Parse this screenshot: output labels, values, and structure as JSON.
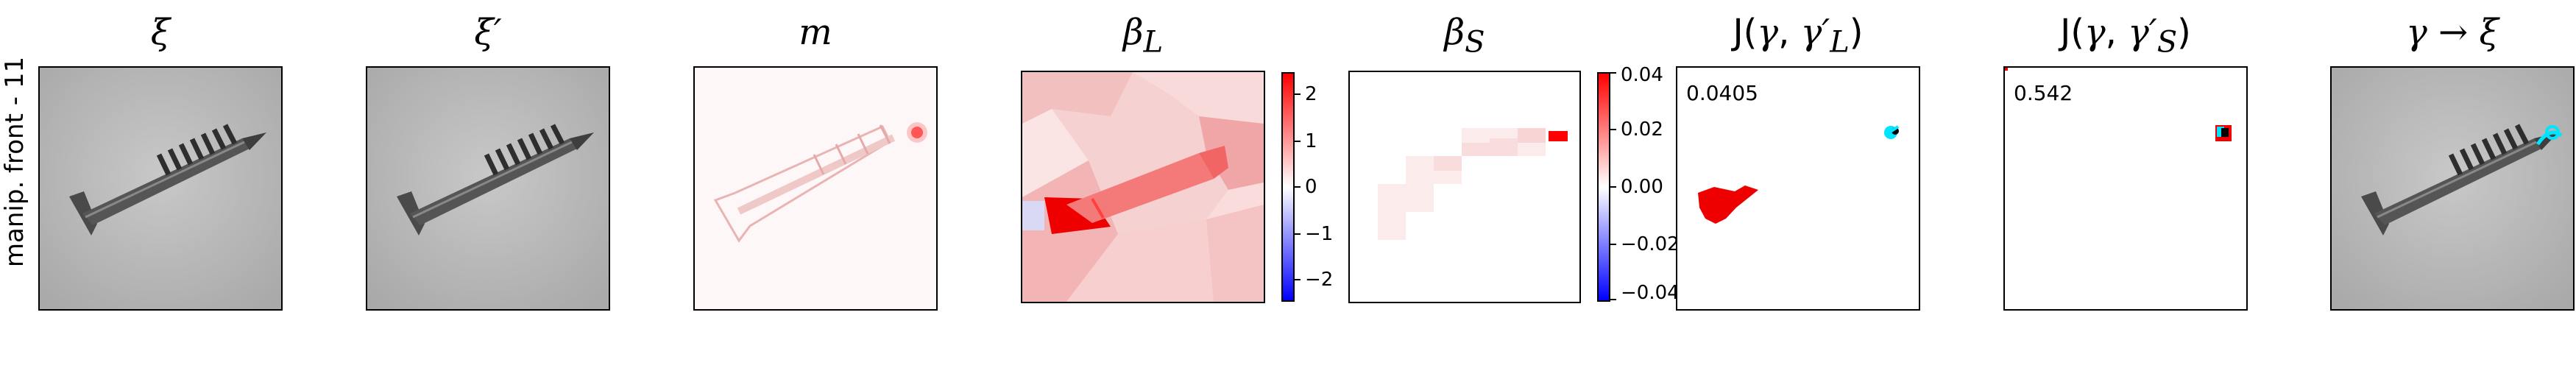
{
  "row_label": "manip. front - 11",
  "panels": {
    "xi": {
      "title": "ξ"
    },
    "xi_prime": {
      "title": "ξ′"
    },
    "m": {
      "title": "m"
    },
    "beta_l": {
      "title": "β",
      "subscript": "L",
      "colorbar_ticks": [
        "2",
        "1",
        "0",
        "−1",
        "−2"
      ]
    },
    "beta_s": {
      "title": "β",
      "subscript": "S",
      "colorbar_ticks": [
        "0.04",
        "0.02",
        "0.00",
        "−0.02",
        "−0.04"
      ]
    },
    "j_l": {
      "title_prefix": "J(",
      "title_var1": "γ",
      "title_sep": ", ",
      "title_var2": "γ′",
      "title_sub": "L",
      "title_suffix": ")",
      "score": "0.0405"
    },
    "j_s": {
      "title_prefix": "J(",
      "title_var1": "γ",
      "title_sep": ", ",
      "title_var2": "γ′",
      "title_sub": "S",
      "title_suffix": ")",
      "score": "0.542"
    },
    "overlay": {
      "title": "γ → ξ"
    }
  },
  "colors": {
    "positive": "#ff0000",
    "negative": "#0000ff",
    "highlight": "#00e5ff"
  }
}
